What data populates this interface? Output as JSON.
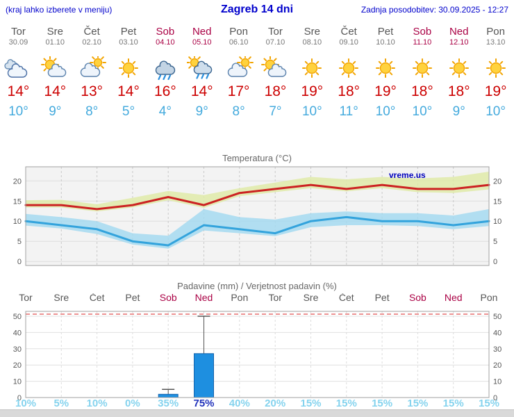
{
  "header": {
    "hint": "(kraj lahko izberete v meniju)",
    "title": "Zagreb 14 dni",
    "updated": "Zadnja posodobitev: 30.09.2025 - 12:27"
  },
  "colors": {
    "accent_blue": "#0000cc",
    "weekend": "#aa0044",
    "weekday": "#555555",
    "tmax_red": "#cc0000",
    "tmin_blue": "#44aadd",
    "bar_blue": "#1e8fe0",
    "prob_light": "#85d3ee",
    "prob_strong": "#2233bb"
  },
  "days": [
    {
      "name": "Tor",
      "date": "30.09",
      "icon": "cloud",
      "tmax": "14°",
      "tmin": "10°",
      "weekend": false
    },
    {
      "name": "Sre",
      "date": "01.10",
      "icon": "sun-cloud",
      "tmax": "14°",
      "tmin": "9°",
      "weekend": false
    },
    {
      "name": "Čet",
      "date": "02.10",
      "icon": "cloud-sun",
      "tmax": "13°",
      "tmin": "8°",
      "weekend": false
    },
    {
      "name": "Pet",
      "date": "03.10",
      "icon": "sun",
      "tmax": "14°",
      "tmin": "5°",
      "weekend": false
    },
    {
      "name": "Sob",
      "date": "04.10",
      "icon": "rain",
      "tmax": "16°",
      "tmin": "4°",
      "weekend": true
    },
    {
      "name": "Ned",
      "date": "05.10",
      "icon": "rain-sun",
      "tmax": "14°",
      "tmin": "9°",
      "weekend": true
    },
    {
      "name": "Pon",
      "date": "06.10",
      "icon": "cloud-sun",
      "tmax": "17°",
      "tmin": "8°",
      "weekend": false
    },
    {
      "name": "Tor",
      "date": "07.10",
      "icon": "sun-cloud",
      "tmax": "18°",
      "tmin": "7°",
      "weekend": false
    },
    {
      "name": "Sre",
      "date": "08.10",
      "icon": "sun",
      "tmax": "19°",
      "tmin": "10°",
      "weekend": false
    },
    {
      "name": "Čet",
      "date": "09.10",
      "icon": "sun",
      "tmax": "18°",
      "tmin": "11°",
      "weekend": false
    },
    {
      "name": "Pet",
      "date": "10.10",
      "icon": "sun",
      "tmax": "19°",
      "tmin": "10°",
      "weekend": false
    },
    {
      "name": "Sob",
      "date": "11.10",
      "icon": "sun",
      "tmax": "18°",
      "tmin": "10°",
      "weekend": true
    },
    {
      "name": "Ned",
      "date": "12.10",
      "icon": "sun",
      "tmax": "18°",
      "tmin": "9°",
      "weekend": true
    },
    {
      "name": "Pon",
      "date": "13.10",
      "icon": "sun",
      "tmax": "19°",
      "tmin": "10°",
      "weekend": false
    }
  ],
  "chart_data": [
    {
      "type": "line",
      "title": "Temperatura (°C)",
      "watermark": "vreme.us",
      "ylim": [
        -1,
        23.5
      ],
      "yticks": [
        0,
        5,
        10,
        15,
        20
      ],
      "grid": true,
      "series": [
        {
          "name": "max temperature",
          "color": "#cc2222",
          "band_color": "#dfeaa8",
          "values": [
            14,
            14,
            13,
            14,
            16,
            14,
            17,
            18,
            19,
            18,
            19,
            18,
            18,
            19
          ],
          "band_upper": [
            15.2,
            15.3,
            14.2,
            15.8,
            17.5,
            16.5,
            18.2,
            19.6,
            21,
            20.4,
            21,
            20.6,
            21,
            22.3
          ],
          "band_lower": [
            13.4,
            13.4,
            12.4,
            13.4,
            15.2,
            13.3,
            16.2,
            17.2,
            18.2,
            17.4,
            18.2,
            17.2,
            17,
            17.9
          ]
        },
        {
          "name": "min temperature",
          "color": "#33a3dc",
          "band_color": "#a5d9f0",
          "values": [
            10,
            9,
            8,
            5,
            4,
            9,
            8,
            7,
            10,
            11,
            10,
            10,
            9,
            10
          ],
          "band_upper": [
            11.8,
            11,
            10,
            7,
            6.4,
            13,
            11,
            10.4,
            12,
            12.4,
            12,
            12,
            11.4,
            13
          ],
          "band_lower": [
            8.9,
            8.2,
            6.8,
            4.2,
            3.2,
            7.7,
            7,
            6.3,
            8.5,
            9,
            9,
            8.8,
            8,
            8.8
          ]
        }
      ]
    },
    {
      "type": "bar",
      "title": "Padavine (mm) / Verjetnost padavin (%)",
      "categories": [
        "Tor",
        "Sre",
        "Čet",
        "Pet",
        "Sob",
        "Ned",
        "Pon",
        "Tor",
        "Sre",
        "Čet",
        "Pet",
        "Sob",
        "Ned",
        "Pon"
      ],
      "weekend_flags": [
        false,
        false,
        false,
        false,
        true,
        true,
        false,
        false,
        false,
        false,
        false,
        true,
        true,
        false
      ],
      "values": [
        0,
        0,
        0,
        0,
        2,
        27,
        0,
        0,
        0,
        0,
        0,
        0,
        0,
        0
      ],
      "whisker_max": [
        0,
        0,
        0,
        0,
        5,
        50,
        0,
        0,
        0,
        0,
        0,
        0,
        0,
        0
      ],
      "probabilities": [
        "10%",
        "5%",
        "10%",
        "0%",
        "35%",
        "75%",
        "40%",
        "20%",
        "15%",
        "15%",
        "15%",
        "15%",
        "15%",
        "15%"
      ],
      "prob_emphasis": [
        false,
        false,
        false,
        false,
        false,
        true,
        false,
        false,
        false,
        false,
        false,
        false,
        false,
        false
      ],
      "ylim": [
        0,
        53
      ],
      "yticks": [
        0,
        10,
        20,
        30,
        40,
        50
      ]
    }
  ]
}
